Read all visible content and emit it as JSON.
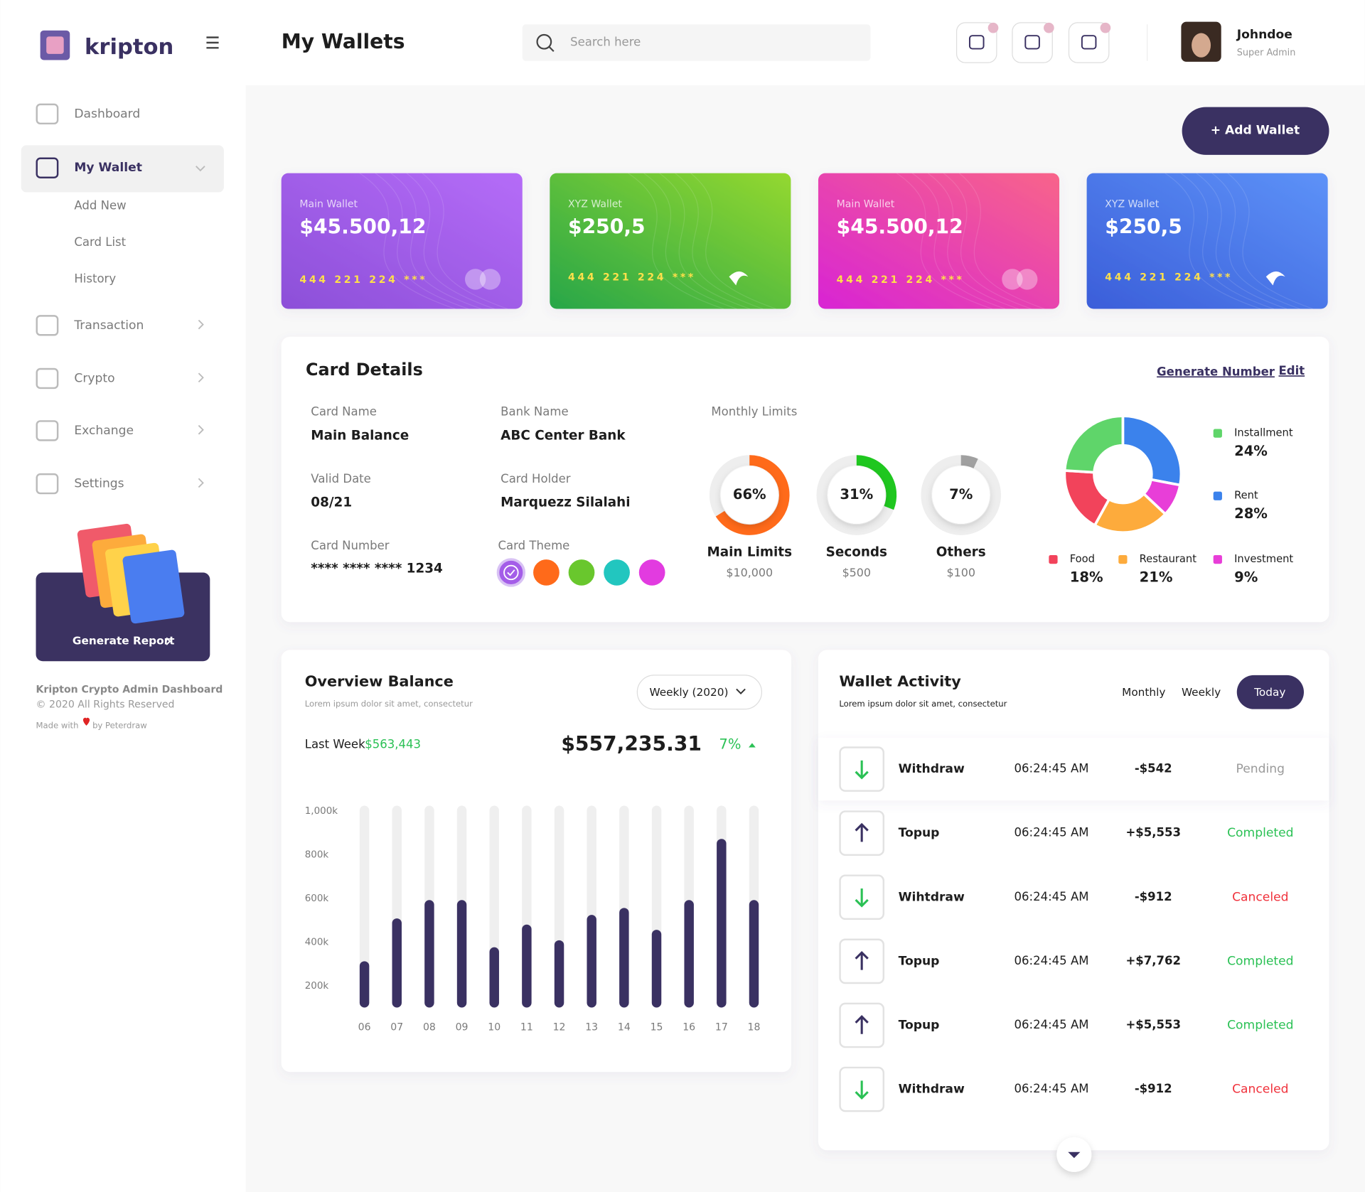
{
  "brand": "kripton",
  "page_title": "My Wallets",
  "search_placeholder": "Search here",
  "user": {
    "name": "Johndoe",
    "role": "Super Admin"
  },
  "add_wallet": "+ Add Wallet",
  "menu": [
    {
      "label": "Dashboard"
    },
    {
      "label": "My Wallet",
      "children": [
        "Add New",
        "Card List",
        "History"
      ]
    },
    {
      "label": "Transaction"
    },
    {
      "label": "Crypto"
    },
    {
      "label": "Exchange"
    },
    {
      "label": "Settings"
    }
  ],
  "generate_report": "Generate Report",
  "footer": {
    "title": "Kripton Crypto Admin Dashboard",
    "rights": "© 2020 All Rights Reserved",
    "made": "Made with",
    "by": "by Peterdraw"
  },
  "wallets": [
    {
      "name": "Main Wallet",
      "balance": "$45.500,12",
      "number": "444 221 224 ***"
    },
    {
      "name": "XYZ Wallet",
      "balance": "$250,5",
      "number": "444 221 224 ***"
    },
    {
      "name": "Main Wallet",
      "balance": "$45.500,12",
      "number": "444 221 224 ***"
    },
    {
      "name": "XYZ Wallet",
      "balance": "$250,5",
      "number": "444 221 224 ***"
    }
  ],
  "card_details": {
    "title": "Card Details",
    "generate": "Generate Number",
    "edit": "Edit",
    "fields": [
      {
        "label": "Card Name",
        "value": "Main Balance"
      },
      {
        "label": "Bank Name",
        "value": "ABC Center Bank"
      },
      {
        "label": "Valid Date",
        "value": "08/21"
      },
      {
        "label": "Card Holder",
        "value": "Marquezz Silalahi"
      },
      {
        "label": "Card Number",
        "value": "**** **** **** 1234"
      }
    ],
    "theme_label": "Card Theme"
  },
  "overview": {
    "title": "Overview Balance",
    "subtitle": "Lorem ipsum dolor sit amet, consectetur",
    "period": "Weekly (2020)",
    "last_week_label": "Last Week",
    "last_week": "$563,443",
    "total": "$557,235.31",
    "change": "7%"
  },
  "activity": {
    "title": "Wallet Activity",
    "subtitle": "Lorem ipsum dolor sit amet, consectetur",
    "tabs": [
      "Monthly",
      "Weekly",
      "Today"
    ],
    "rows": [
      {
        "type": "Withdraw",
        "time": "06:24:45 AM",
        "amount": "-$542",
        "status": "Pending",
        "color": "#9a9a9a"
      },
      {
        "type": "Topup",
        "time": "06:24:45 AM",
        "amount": "+$5,553",
        "status": "Completed",
        "color": "#2bc155"
      },
      {
        "type": "Wihtdraw",
        "time": "06:24:45 AM",
        "amount": "-$912",
        "status": "Canceled",
        "color": "#f0323c"
      },
      {
        "type": "Topup",
        "time": "06:24:45 AM",
        "amount": "+$7,762",
        "status": "Completed",
        "color": "#2bc155"
      },
      {
        "type": "Topup",
        "time": "06:24:45 AM",
        "amount": "+$5,553",
        "status": "Completed",
        "color": "#2bc155"
      },
      {
        "type": "Withdraw",
        "time": "06:24:45 AM",
        "amount": "-$912",
        "status": "Canceled",
        "color": "#f0323c"
      }
    ]
  },
  "chart_data": [
    {
      "type": "gauge",
      "title": "Monthly Limits",
      "categories": [
        "Main Limits",
        "Seconds",
        "Others"
      ],
      "values": [
        66,
        31,
        7
      ],
      "value_labels": [
        "66%",
        "31%",
        "7%"
      ],
      "amounts": [
        "$10,000",
        "$500",
        "$100"
      ],
      "colors": [
        "#ff6a1a",
        "#1fc71f",
        "#a0a0a0"
      ]
    },
    {
      "type": "pie",
      "categories": [
        "Rent",
        "Investment",
        "Restaurant",
        "Food",
        "Installment"
      ],
      "values": [
        28,
        9,
        21,
        18,
        24
      ],
      "value_labels": [
        "28%",
        "9%",
        "21%",
        "18%",
        "24%"
      ],
      "colors": [
        "#3b82ec",
        "#e83ed8",
        "#fdab3c",
        "#f2435b",
        "#5fd56a"
      ]
    },
    {
      "type": "bar",
      "categories": [
        "06",
        "07",
        "08",
        "09",
        "10",
        "11",
        "12",
        "13",
        "14",
        "15",
        "16",
        "17",
        "18"
      ],
      "values": [
        312,
        508,
        592,
        592,
        376,
        480,
        408,
        524,
        556,
        456,
        592,
        872,
        592
      ],
      "ylim": [
        100,
        1000
      ],
      "yticks": [
        {
          "value": 200,
          "label": "200k"
        },
        {
          "value": 400,
          "label": "400k"
        },
        {
          "value": 600,
          "label": "600k"
        },
        {
          "value": 800,
          "label": "800k"
        },
        {
          "value": 1000,
          "label": "1,000k"
        }
      ],
      "color": "#3a3162",
      "grid": false
    }
  ]
}
